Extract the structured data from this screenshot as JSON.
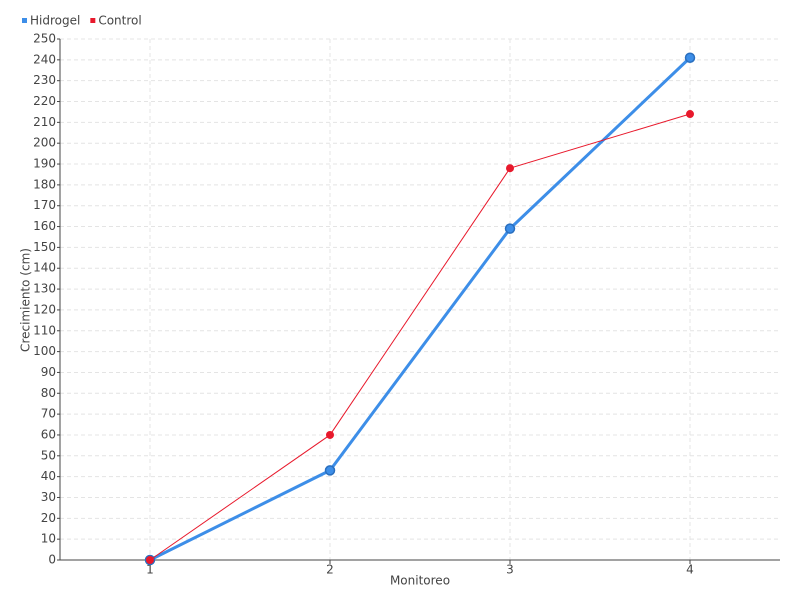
{
  "chart_data": {
    "type": "line",
    "x": [
      1,
      2,
      3,
      4
    ],
    "xlabel": "Monitoreo",
    "ylabel": "Crecimiento (cm)",
    "xlim": [
      0.5,
      4.5
    ],
    "xticks": [
      1,
      2,
      3,
      4
    ],
    "ylim": [
      0,
      250
    ],
    "yticks": [
      0,
      10,
      20,
      30,
      40,
      50,
      60,
      70,
      80,
      90,
      100,
      110,
      120,
      130,
      140,
      150,
      160,
      170,
      180,
      190,
      200,
      210,
      220,
      230,
      240,
      250
    ],
    "grid": true,
    "legend": "top-left",
    "series": [
      {
        "name": "Hidrogel",
        "color": "#3d8ee8",
        "values": [
          0,
          43,
          159,
          241
        ]
      },
      {
        "name": "Control",
        "color": "#e8192c",
        "values": [
          0,
          60,
          188,
          214
        ]
      }
    ]
  }
}
